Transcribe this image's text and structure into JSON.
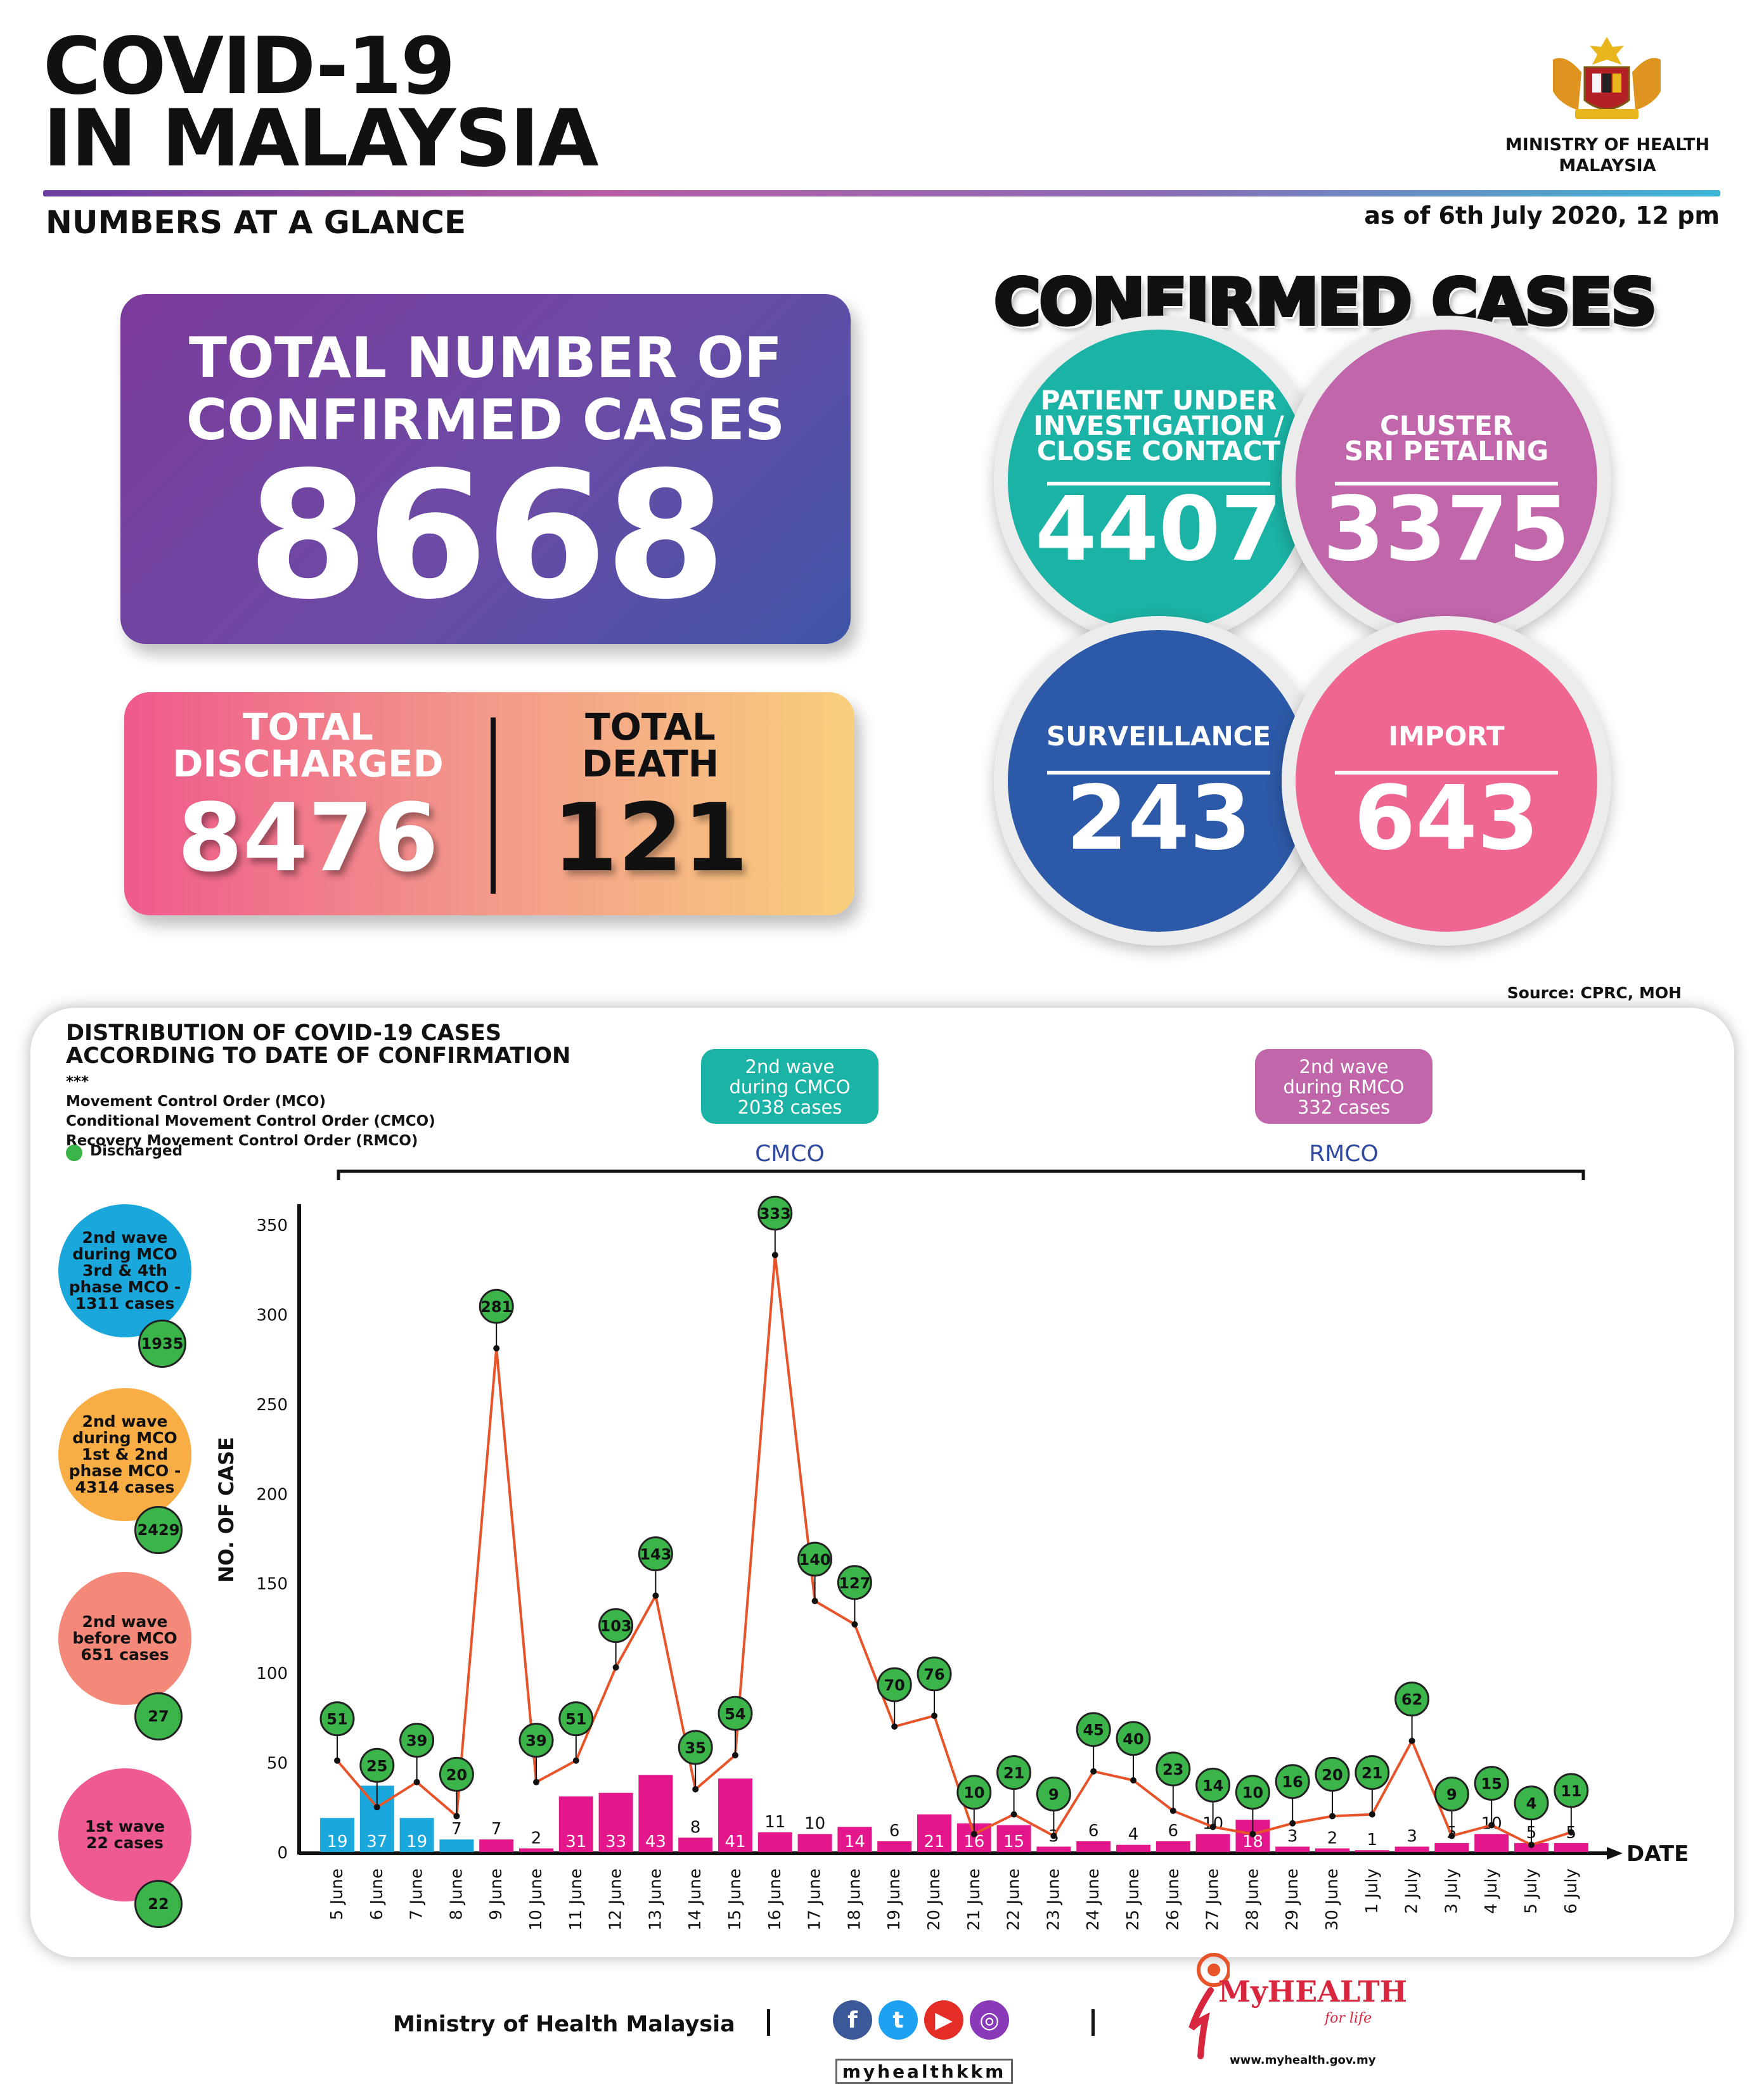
{
  "header": {
    "title_line1": "COVID-19",
    "title_line2": "IN MALAYSIA",
    "subtitle": "NUMBERS AT A GLANCE",
    "as_of": "as of 6th July 2020, 12 pm",
    "ministry_line1": "MINISTRY OF HEALTH",
    "ministry_line2": "MALAYSIA",
    "crest_icon": "malaysia-coat-of-arms-icon"
  },
  "totals": {
    "confirmed_line1": "TOTAL NUMBER OF",
    "confirmed_line2": "CONFIRMED CASES",
    "confirmed_value": "8668",
    "discharged_line1": "TOTAL",
    "discharged_line2": "DISCHARGED",
    "discharged_value": "8476",
    "death_line1": "TOTAL",
    "death_line2": "DEATH",
    "death_value": "121"
  },
  "confirmed_cases": {
    "title": "CONFIRMED CASES",
    "pui_line1": "PATIENT UNDER",
    "pui_line2": "INVESTIGATION /",
    "pui_line3": "CLOSE CONTACT",
    "pui_value": "4407",
    "cluster_line1": "CLUSTER",
    "cluster_line2": "SRI PETALING",
    "cluster_value": "3375",
    "surveillance_label": "SURVEILLANCE",
    "surveillance_value": "243",
    "import_label": "IMPORT",
    "import_value": "643",
    "colors": {
      "pui": "#1bb3a5",
      "cluster": "#c266ac",
      "surveillance": "#2d5aa8",
      "import": "#ef6690"
    }
  },
  "source": "Source: CPRC, MOH",
  "panel": {
    "title_line1": "DISTRIBUTION OF COVID-19 CASES",
    "title_line2": "ACCORDING TO DATE OF CONFIRMATION",
    "notes_mark": "***",
    "note1": "Movement Control Order (MCO)",
    "note2": "Conditional Movement Control Order (CMCO)",
    "note3": "Recovery Movement Control Order (RMCO)",
    "legend_discharged": "Discharged",
    "cmco_box_line1": "2nd wave",
    "cmco_box_line2": "during CMCO",
    "cmco_box_line3": "2038 cases",
    "cmco_label": "CMCO",
    "rmco_box_line1": "2nd wave",
    "rmco_box_line2": "during RMCO",
    "rmco_box_line3": "332 cases",
    "rmco_label": "RMCO",
    "side": [
      {
        "line1": "2nd wave",
        "line2": "during MCO",
        "line3": "3rd & 4th",
        "line4": "phase MCO -",
        "line5": "1311 cases",
        "badge": "1935",
        "color": "#1aa7dc"
      },
      {
        "line1": "2nd wave",
        "line2": "during MCO",
        "line3": "1st & 2nd",
        "line4": "phase MCO -",
        "line5": "4314 cases",
        "badge": "2429",
        "color": "#f8ad45"
      },
      {
        "line1": "2nd wave",
        "line2": "before MCO",
        "line3": "651 cases",
        "line4": "",
        "line5": "",
        "badge": "27",
        "color": "#f4897a"
      },
      {
        "line1": "1st wave",
        "line2": "22 cases",
        "line3": "",
        "line4": "",
        "line5": "",
        "badge": "22",
        "color": "#ef5a93"
      }
    ]
  },
  "chart_data": {
    "type": "bar",
    "ylabel": "NO. OF CASE",
    "xlabel": "DATE",
    "ylim": [
      0,
      350
    ],
    "yticks": [
      0,
      50,
      100,
      150,
      200,
      250,
      300,
      350
    ],
    "categories": [
      "5 June",
      "6 June",
      "7 June",
      "8 June",
      "9 June",
      "10 June",
      "11 June",
      "12 June",
      "13 June",
      "14 June",
      "15 June",
      "16 June",
      "17 June",
      "18 June",
      "19 June",
      "20 June",
      "21 June",
      "22 June",
      "23 June",
      "24 June",
      "25 June",
      "26 June",
      "27 June",
      "28 June",
      "29 June",
      "30 June",
      "1 July",
      "2 July",
      "3 July",
      "4 July",
      "5 July",
      "6 July"
    ],
    "series": [
      {
        "name": "",
        "values": [
          19,
          37,
          19,
          7,
          7,
          2,
          31,
          33,
          43,
          8,
          41,
          11,
          10,
          14,
          6,
          21,
          16,
          15,
          3,
          6,
          4,
          6,
          10,
          18,
          3,
          2,
          1,
          3,
          5,
          10,
          5,
          5
        ]
      },
      {
        "name": "Discharged",
        "values": [
          51,
          25,
          39,
          20,
          281,
          39,
          51,
          103,
          143,
          35,
          54,
          333,
          140,
          127,
          70,
          76,
          10,
          21,
          9,
          45,
          40,
          23,
          14,
          10,
          16,
          20,
          21,
          62,
          9,
          15,
          4,
          11
        ]
      }
    ],
    "bar_colors": {
      "mco": "#1aa7dc",
      "cmco_rmco": "#e4168c"
    },
    "line_color": "#e8542a",
    "legend": "Discharged"
  },
  "footer": {
    "ministry": "Ministry of Health Malaysia",
    "handle": "myhealthkkm",
    "brand_main": "MyHEALTH",
    "brand_sub": "for life",
    "brand_url": "www.myhealth.gov.my"
  }
}
